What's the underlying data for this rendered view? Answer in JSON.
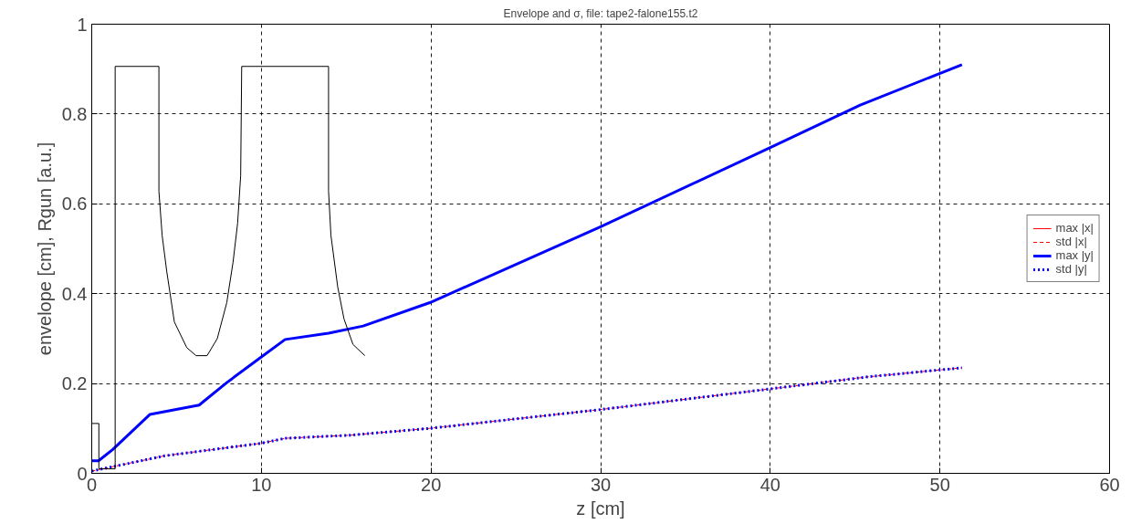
{
  "chart_data": {
    "type": "line",
    "title": "Envelope and σ, file: tape2-falone155.t2",
    "xlabel": "z [cm]",
    "ylabel": "envelope [cm], Rgun [a.u.]",
    "xlim": [
      0,
      60
    ],
    "ylim": [
      0,
      1
    ],
    "xticks": [
      0,
      10,
      20,
      30,
      40,
      50,
      60
    ],
    "yticks": [
      0,
      0.2,
      0.4,
      0.6,
      0.8,
      1
    ],
    "grid": true,
    "legend": "right",
    "marker": "none",
    "series": [
      {
        "name": "max |x|",
        "color": "#ff0000",
        "line_style": "solid"
      },
      {
        "name": "std |x|",
        "color": "#ff0000",
        "line_style": "dashed",
        "x": [
          0,
          4.3,
          10,
          11.4,
          15.25,
          19.9,
          30,
          40,
          45.8,
          51.3
        ],
        "values": [
          0.005,
          0.039,
          0.067,
          0.078,
          0.085,
          0.1,
          0.142,
          0.188,
          0.215,
          0.235
        ]
      },
      {
        "name": "max |y|",
        "color": "#0000ff",
        "line_style": "solid",
        "x": [
          0,
          0.4,
          1.24,
          3.42,
          6.33,
          7.96,
          10,
          11.4,
          13.96,
          16.0,
          19.93,
          30.0,
          40.03,
          45.3,
          51.3
        ],
        "values": [
          0.028,
          0.028,
          0.053,
          0.131,
          0.152,
          0.202,
          0.259,
          0.298,
          0.312,
          0.328,
          0.38,
          0.549,
          0.726,
          0.82,
          0.91
        ]
      },
      {
        "name": "std |y|",
        "color": "#0000ff",
        "line_style": "dotted",
        "x": [
          0,
          4.3,
          10,
          11.4,
          15.25,
          19.9,
          30,
          40,
          45.8,
          51.3
        ],
        "values": [
          0.005,
          0.039,
          0.067,
          0.078,
          0.085,
          0.1,
          0.142,
          0.188,
          0.215,
          0.235
        ]
      },
      {
        "color": "#000000",
        "line_style": "solid",
        "x": [
          0,
          0.42,
          0.42,
          1.38,
          1.38,
          3.96,
          3.96,
          4.15,
          4.42,
          4.87,
          5.6,
          6.15,
          6.8,
          7.4,
          7.96,
          8.33,
          8.6,
          8.78,
          8.84,
          13.96,
          13.96,
          14.1,
          14.5,
          14.87,
          15.4,
          16.1
        ],
        "values": [
          0.111,
          0.111,
          0.01,
          0.01,
          0.906,
          0.906,
          0.628,
          0.53,
          0.45,
          0.337,
          0.28,
          0.262,
          0.262,
          0.3,
          0.38,
          0.47,
          0.557,
          0.663,
          0.906,
          0.906,
          0.628,
          0.53,
          0.415,
          0.344,
          0.287,
          0.262
        ]
      }
    ]
  }
}
